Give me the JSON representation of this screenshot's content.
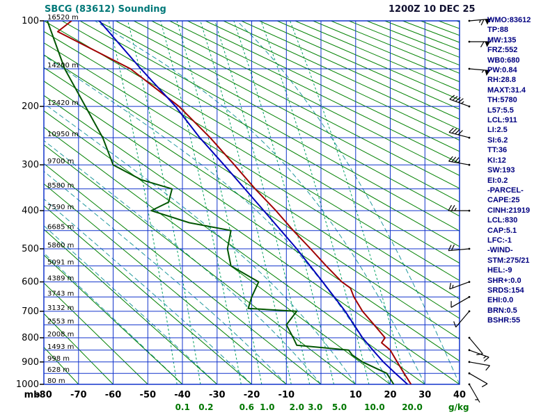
{
  "header": {
    "title": "SBCG (83612) Sounding",
    "datetime": "1200Z 10 DEC 25"
  },
  "stats": {
    "lines": [
      "WMO:83612",
      "TP:88",
      "MW:135",
      "FRZ:552",
      "WB0:680",
      "PW:0.84",
      "RH:28.8",
      "MAXT:31.4",
      "TH:5780",
      "L57:5.5",
      "LCL:911",
      "LI:2.5",
      "SI:6.2",
      "TT:36",
      "KI:12",
      "SW:193",
      "EI:0.2",
      "-PARCEL-",
      "CAPE:25",
      "CINH:21919",
      "LCL:830",
      "CAP:5.1",
      "LFC:-1",
      "-WIND-",
      "STM:275/21",
      "HEL:-9",
      "SHR+:0.0",
      "SRDS:154",
      "EHI:0.0",
      "BRN:0.5",
      "BSHR:55"
    ]
  },
  "chart_data": {
    "type": "line",
    "diagram": "stuve-sounding",
    "title": "SBCG (83612) Sounding",
    "pressure_axis": {
      "unit": "mb",
      "ticks": [
        100,
        200,
        300,
        400,
        500,
        600,
        700,
        800,
        900,
        1000
      ],
      "range": [
        100,
        1000
      ],
      "scale": "p^0.2859"
    },
    "temp_axis": {
      "unit": "C",
      "ticks": [
        -80,
        -70,
        -60,
        -50,
        -40,
        -30,
        -20,
        -10,
        10,
        20,
        30,
        40
      ],
      "range": [
        -80,
        40
      ]
    },
    "heights_m": [
      [
        100,
        "16520 m"
      ],
      [
        150,
        "14200 m"
      ],
      [
        200,
        "12420 m"
      ],
      [
        250,
        "10950 m"
      ],
      [
        300,
        "9700 m"
      ],
      [
        350,
        "8580 m"
      ],
      [
        400,
        "7590 m"
      ],
      [
        450,
        "6685 m"
      ],
      [
        500,
        "5860 m"
      ],
      [
        550,
        "5091 m"
      ],
      [
        600,
        "4389 m"
      ],
      [
        650,
        "3743 m"
      ],
      [
        700,
        "3132 m"
      ],
      [
        750,
        "2553 m"
      ],
      [
        800,
        "2008 m"
      ],
      [
        850,
        "1493 m"
      ],
      [
        900,
        "998 m"
      ],
      [
        950,
        "628 m"
      ],
      [
        1000,
        "80 m"
      ]
    ],
    "dry_adiabats": {
      "theta_c_start": -80,
      "theta_c_end": 330,
      "step": 10
    },
    "moist_adiabats": {
      "start_temps_c": [
        -40,
        -30,
        -20,
        -10,
        0,
        10,
        20,
        30,
        40
      ]
    },
    "mixing_ratio_lines": {
      "values_gkg": [
        0.1,
        0.2,
        0.6,
        1.0,
        2.0,
        3.0,
        5.0,
        10.0,
        20.0
      ],
      "unit_label": "g/kg"
    },
    "series": [
      {
        "name": "temperature",
        "color": "#a00000",
        "points_p_t": [
          [
            1000,
            26
          ],
          [
            950,
            24
          ],
          [
            900,
            22
          ],
          [
            850,
            20
          ],
          [
            820,
            17.5
          ],
          [
            800,
            18.5
          ],
          [
            760,
            16
          ],
          [
            700,
            12
          ],
          [
            650,
            9.5
          ],
          [
            620,
            8.5
          ],
          [
            600,
            6
          ],
          [
            550,
            1.5
          ],
          [
            500,
            -3
          ],
          [
            450,
            -8
          ],
          [
            400,
            -13
          ],
          [
            350,
            -19
          ],
          [
            300,
            -25
          ],
          [
            250,
            -32
          ],
          [
            200,
            -41
          ],
          [
            150,
            -55
          ],
          [
            110,
            -76
          ],
          [
            100,
            -72
          ]
        ]
      },
      {
        "name": "parcel",
        "color": "#0000bb",
        "points_p_t": [
          [
            1000,
            25
          ],
          [
            950,
            21.5
          ],
          [
            900,
            18
          ],
          [
            850,
            15
          ],
          [
            800,
            12
          ],
          [
            700,
            7
          ],
          [
            600,
            0.5
          ],
          [
            500,
            -7
          ],
          [
            400,
            -16.5
          ],
          [
            300,
            -28
          ],
          [
            250,
            -35
          ],
          [
            200,
            -42
          ],
          [
            150,
            -52
          ],
          [
            100,
            -64
          ]
        ]
      },
      {
        "name": "dewpoint",
        "color": "#005500",
        "points_p_t": [
          [
            1000,
            21
          ],
          [
            950,
            19
          ],
          [
            900,
            12
          ],
          [
            870,
            9
          ],
          [
            850,
            8
          ],
          [
            830,
            -7
          ],
          [
            800,
            -8
          ],
          [
            750,
            -10
          ],
          [
            700,
            -7
          ],
          [
            690,
            -21
          ],
          [
            650,
            -20
          ],
          [
            600,
            -18
          ],
          [
            550,
            -26
          ],
          [
            500,
            -27
          ],
          [
            450,
            -26
          ],
          [
            430,
            -38
          ],
          [
            400,
            -49
          ],
          [
            380,
            -44
          ],
          [
            350,
            -43
          ],
          [
            330,
            -52
          ],
          [
            300,
            -60
          ],
          [
            250,
            -63
          ],
          [
            200,
            -68
          ],
          [
            150,
            -74
          ],
          [
            100,
            -79
          ]
        ]
      }
    ],
    "winds_p_dir_spd": [
      [
        1000,
        150,
        5
      ],
      [
        950,
        120,
        10
      ],
      [
        900,
        100,
        10
      ],
      [
        850,
        110,
        15
      ],
      [
        800,
        140,
        10
      ],
      [
        700,
        220,
        10
      ],
      [
        650,
        240,
        10
      ],
      [
        600,
        250,
        15
      ],
      [
        500,
        265,
        20
      ],
      [
        400,
        270,
        25
      ],
      [
        300,
        280,
        35
      ],
      [
        250,
        285,
        40
      ],
      [
        200,
        290,
        45
      ],
      [
        150,
        95,
        55
      ],
      [
        120,
        90,
        60
      ],
      [
        100,
        85,
        65
      ]
    ],
    "colors": {
      "grid": "#1133cc",
      "dry": "#008000",
      "mixing": "#00a060",
      "moist": "#20989d",
      "mixlabel": "#007700",
      "temperature": "#a00000",
      "dewpoint": "#005500",
      "parcel": "#0000bb",
      "wind": "#000000",
      "stats_text": "#000080",
      "title": "#007878",
      "axis_text": "#000000"
    }
  }
}
